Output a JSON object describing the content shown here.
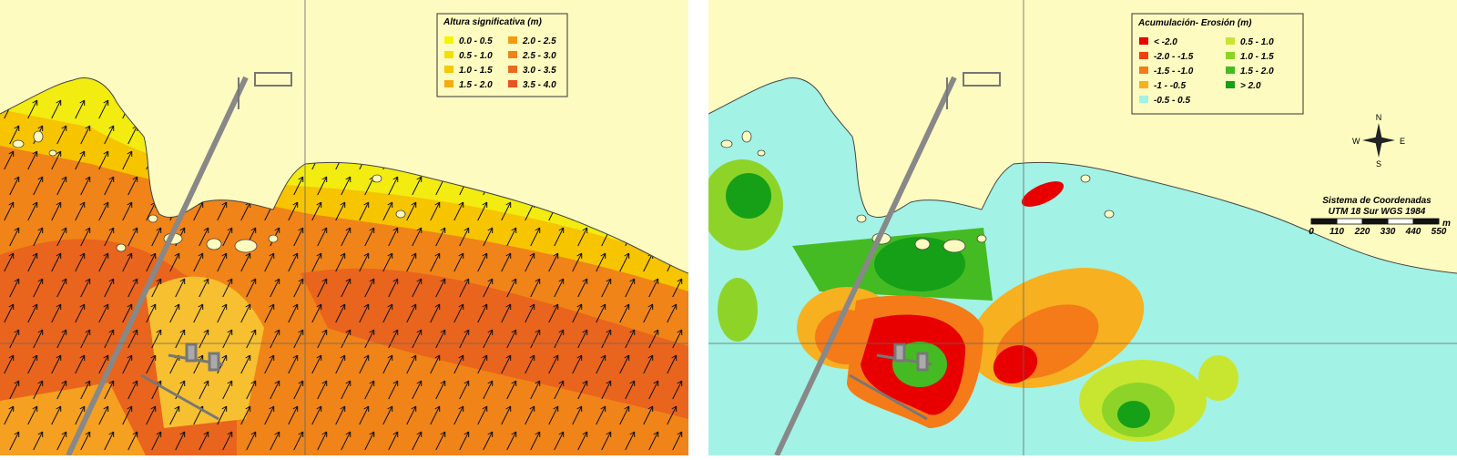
{
  "left_map": {
    "legend": {
      "title": "Altura significativa (m)",
      "items": [
        {
          "label": "0.0 - 0.5",
          "color": "#f5f500"
        },
        {
          "label": "0.5 - 1.0",
          "color": "#f2e000"
        },
        {
          "label": "1.0 - 1.5",
          "color": "#f5c800"
        },
        {
          "label": "1.5 - 2.0",
          "color": "#f5ac10"
        },
        {
          "label": "2.0 - 2.5",
          "color": "#f59a10"
        },
        {
          "label": "2.5 - 3.0",
          "color": "#f08418"
        },
        {
          "label": "3.0 - 3.5",
          "color": "#eb6a1c"
        },
        {
          "label": "3.5 - 4.0",
          "color": "#e55520"
        }
      ]
    }
  },
  "right_map": {
    "legend": {
      "title": "Acumulación- Erosión (m)",
      "items": [
        {
          "label": "< -2.0",
          "color": "#e80000"
        },
        {
          "label": "-2.0 - -1.5",
          "color": "#f04010"
        },
        {
          "label": "-1.5 - -1.0",
          "color": "#f57a18"
        },
        {
          "label": "-1 - -0.5",
          "color": "#f7b020"
        },
        {
          "label": "-0.5 - 0.5",
          "color": "#a2f2e6"
        },
        {
          "label": "0.5 - 1.0",
          "color": "#c8e630"
        },
        {
          "label": "1.0 - 1.5",
          "color": "#8ed428"
        },
        {
          "label": "1.5 - 2.0",
          "color": "#44bb22"
        },
        {
          "label": "> 2.0",
          "color": "#16a018"
        }
      ]
    },
    "compass": {
      "north": "N",
      "south": "S",
      "east": "E",
      "west": "W"
    },
    "scale_bar": {
      "title": "Sistema de Coordenadas",
      "subtitle": "UTM 18 Sur WGS 1984",
      "ticks": [
        0,
        110,
        220,
        330,
        440,
        550
      ],
      "unit": "m"
    }
  }
}
